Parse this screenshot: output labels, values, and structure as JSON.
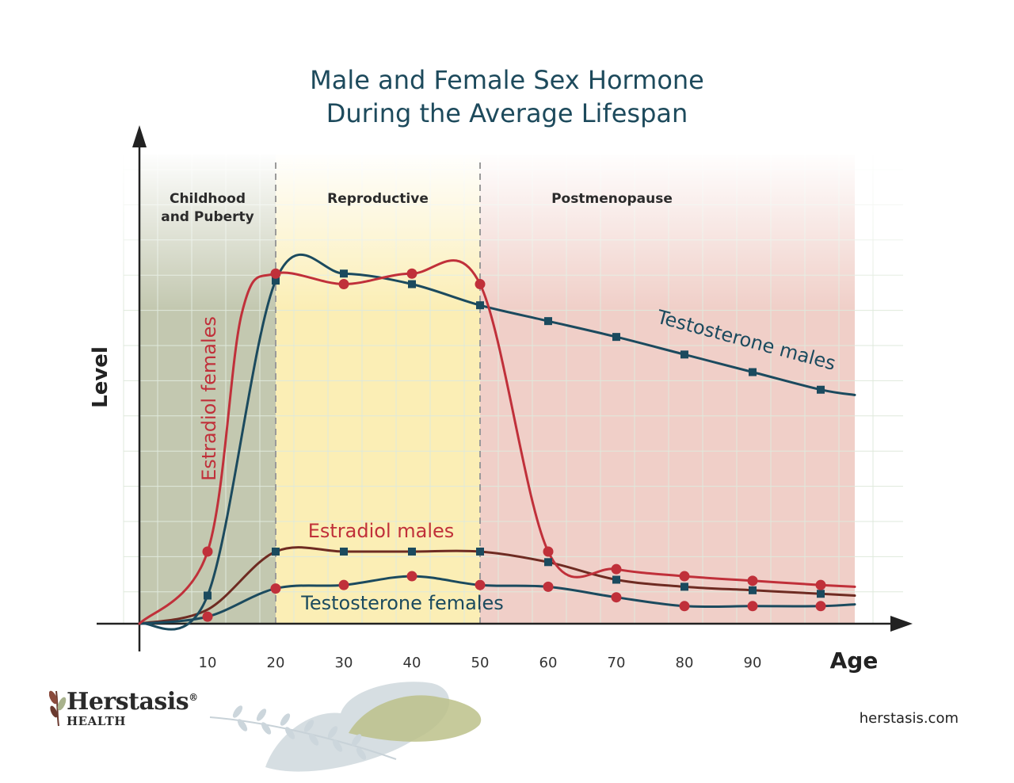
{
  "chart_data": {
    "type": "line",
    "title_line1": "Male and Female Sex Hormone",
    "title_line2": "During the Average Lifespan",
    "xlabel": "Age",
    "ylabel": "Level",
    "xlim": [
      0,
      107
    ],
    "ylim": [
      0,
      100
    ],
    "x_ticks": [
      10,
      20,
      30,
      40,
      50,
      60,
      70,
      80,
      90
    ],
    "phases": [
      {
        "label_line1": "Childhood",
        "label_line2": "and Puberty",
        "start": 0,
        "end": 20,
        "color": "#c3c8b0"
      },
      {
        "label_line1": "Reproductive",
        "label_line2": "",
        "start": 20,
        "end": 50,
        "color": "#fbeeb5"
      },
      {
        "label_line1": "Postmenopause",
        "label_line2": "",
        "start": 50,
        "end": 105,
        "color": "#f0cfc8"
      }
    ],
    "series": [
      {
        "name": "Estradiol females",
        "color": "#c0303a",
        "marker": "circle",
        "x": [
          0,
          10,
          15,
          20,
          30,
          40,
          50,
          60,
          70,
          80,
          90,
          100,
          105
        ],
        "y": [
          0,
          20.5,
          88,
          99.5,
          96.5,
          99.5,
          96.5,
          20.5,
          15.5,
          13.5,
          12.2,
          11,
          10.5
        ],
        "marked": [
          10,
          20,
          30,
          40,
          50,
          60,
          70,
          80,
          90,
          100
        ]
      },
      {
        "name": "Testosterone males",
        "color": "#1b4a5e",
        "marker": "square",
        "x": [
          0,
          10,
          20,
          30,
          40,
          50,
          60,
          70,
          80,
          90,
          100,
          105
        ],
        "y": [
          0,
          8,
          97.5,
          99.5,
          96.5,
          90.5,
          86,
          81.5,
          76.5,
          71.5,
          66.5,
          65
        ],
        "marked": [
          10,
          20,
          30,
          40,
          50,
          60,
          70,
          80,
          90,
          100
        ]
      },
      {
        "name": "Estradiol males",
        "color": "#6e2b22",
        "marker": "square",
        "marker_color": "#1b4a5e",
        "x": [
          0,
          10,
          20,
          30,
          40,
          50,
          60,
          70,
          80,
          90,
          100,
          105
        ],
        "y": [
          0,
          4,
          20.5,
          20.5,
          20.5,
          20.5,
          17.5,
          12.5,
          10.5,
          9.5,
          8.5,
          8
        ],
        "marked": [
          20,
          30,
          40,
          50,
          60,
          70,
          80,
          90,
          100
        ]
      },
      {
        "name": "Testosterone females",
        "color": "#1b4a5e",
        "marker": "circle",
        "marker_color": "#c0303a",
        "x": [
          0,
          10,
          20,
          30,
          40,
          50,
          60,
          70,
          80,
          90,
          100,
          105
        ],
        "y": [
          0,
          2,
          10,
          11,
          13.5,
          11,
          10.5,
          7.5,
          5,
          5,
          5,
          5.5
        ],
        "marked": [
          10,
          20,
          30,
          40,
          50,
          60,
          70,
          80,
          90,
          100
        ]
      }
    ]
  },
  "brand": {
    "name": "Herstasis",
    "sub": "HEALTH",
    "mark": "®",
    "website": "herstasis.com"
  }
}
